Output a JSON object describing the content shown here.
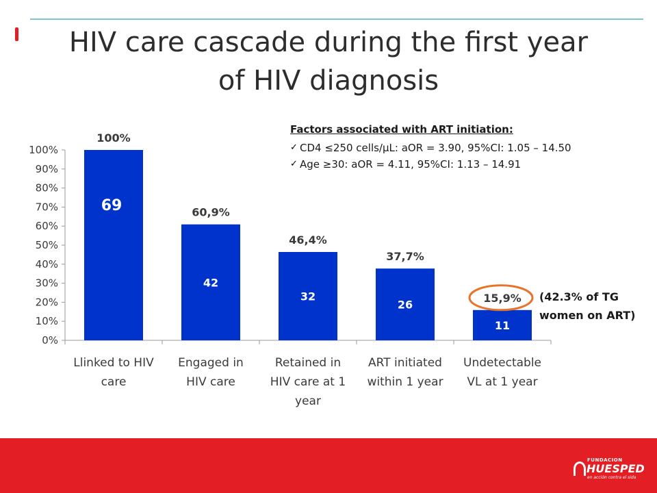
{
  "slide": {
    "title_line1": "HIV care cascade during the first year",
    "title_line2": "of HIV diagnosis"
  },
  "notes": {
    "heading": "Factors associated with ART initiation:",
    "items": [
      "CD4 ≤250 cells/µL: aOR = 3.90, 95%CI: 1.05 – 14.50",
      "Age ≥30: aOR = 4.11, 95%CI: 1.13 – 14.91"
    ],
    "bullet_icon": "checkmark-icon"
  },
  "side_note": {
    "line1": "(42.3% of TG",
    "line2": "women on ART)"
  },
  "footer": {
    "logo_small": "FUNDACION",
    "logo_big": "HUESPED",
    "logo_tag": "en acción contra el sida",
    "color": "#e31e24"
  },
  "chart_data": {
    "type": "bar",
    "categories": [
      [
        "Llinked to HIV",
        "care"
      ],
      [
        "Engaged in",
        "HIV care"
      ],
      [
        "Retained in",
        "HIV care at 1",
        "year"
      ],
      [
        "ART initiated",
        "within 1 year"
      ],
      [
        "Undetectable",
        "VL at 1 year"
      ]
    ],
    "values": [
      100,
      60.9,
      46.4,
      37.7,
      15.9
    ],
    "top_labels": [
      "100%",
      "60,9%",
      "46,4%",
      "37,7%",
      "15,9%"
    ],
    "counts": [
      "69",
      "42",
      "32",
      "26",
      "11"
    ],
    "yticks": [
      "0%",
      "10%",
      "20%",
      "30%",
      "40%",
      "50%",
      "60%",
      "70%",
      "80%",
      "90%",
      "100%"
    ],
    "ylim": [
      0,
      100
    ],
    "bar_color": "#0033cc",
    "highlight_color": "#e8732a",
    "highlight_index": 4,
    "grid": false
  }
}
